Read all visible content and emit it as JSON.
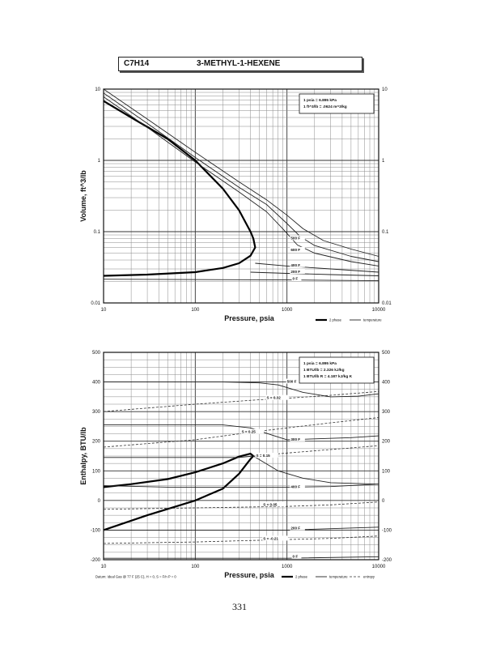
{
  "header": {
    "formula": "C7H14",
    "compound": "3-METHYL-1-HEXENE"
  },
  "page_number": "331",
  "chart_data": [
    {
      "type": "line",
      "x_scale": "log",
      "y_scale": "log",
      "xlim": [
        10,
        10000
      ],
      "ylim": [
        0.01,
        10
      ],
      "xlabel": "Pressure,  psia",
      "ylabel": "Volume, ft^3/lb",
      "x_ticks": [
        "10",
        "100",
        "1000",
        "10000"
      ],
      "y_ticks": [
        "0.01",
        "0.1",
        "1",
        "10"
      ],
      "conversion_notes": [
        "1 psia  =  6.895 kPa",
        "1 ft^3/lb  =  .0624 m^3/kg"
      ],
      "legend": [
        "2 phase",
        "temperature"
      ],
      "legend_placement": "bottom-right",
      "grid": true,
      "series": [
        {
          "name": "2 phase",
          "style": "heavy",
          "points": [
            [
              10,
              0.024
            ],
            [
              30,
              0.025
            ],
            [
              100,
              0.027
            ],
            [
              200,
              0.031
            ],
            [
              300,
              0.036
            ],
            [
              400,
              0.046
            ],
            [
              450,
              0.06
            ],
            [
              430,
              0.08
            ],
            [
              400,
              0.1
            ],
            [
              300,
              0.2
            ],
            [
              200,
              0.4
            ],
            [
              100,
              1.0
            ],
            [
              50,
              2.0
            ],
            [
              20,
              4.0
            ],
            [
              10,
              6.8
            ]
          ]
        },
        {
          "name": "temperature",
          "style": "thin",
          "points": [
            [
              10,
              7.8
            ],
            [
              30,
              2.9
            ],
            [
              100,
              0.95
            ],
            [
              300,
              0.36
            ],
            [
              600,
              0.19
            ],
            [
              900,
              0.11
            ],
            [
              1300,
              0.065
            ],
            [
              2000,
              0.05
            ],
            [
              5000,
              0.038
            ],
            [
              10000,
              0.033
            ]
          ]
        },
        {
          "name": "temperature",
          "style": "thin",
          "points": [
            [
              10,
              8.8
            ],
            [
              30,
              3.3
            ],
            [
              100,
              1.1
            ],
            [
              300,
              0.42
            ],
            [
              600,
              0.24
            ],
            [
              1000,
              0.13
            ],
            [
              1400,
              0.085
            ],
            [
              2000,
              0.064
            ],
            [
              5000,
              0.045
            ],
            [
              10000,
              0.038
            ]
          ]
        },
        {
          "name": "temperature",
          "style": "thin",
          "points": [
            [
              10,
              10
            ],
            [
              30,
              3.8
            ],
            [
              100,
              1.3
            ],
            [
              300,
              0.5
            ],
            [
              600,
              0.28
            ],
            [
              1000,
              0.17
            ],
            [
              1500,
              0.11
            ],
            [
              2500,
              0.075
            ],
            [
              5000,
              0.057
            ],
            [
              10000,
              0.045
            ]
          ]
        },
        {
          "name": "temperature",
          "style": "thin",
          "points": [
            [
              450,
              0.036
            ],
            [
              1000,
              0.033
            ],
            [
              3000,
              0.03
            ],
            [
              10000,
              0.027
            ]
          ]
        },
        {
          "name": "temperature",
          "style": "thin",
          "points": [
            [
              400,
              0.027
            ],
            [
              1000,
              0.026
            ],
            [
              3000,
              0.025
            ],
            [
              10000,
              0.024
            ]
          ]
        },
        {
          "name": "temperature",
          "style": "thin",
          "points": [
            [
              10,
              0.0215
            ],
            [
              1000,
              0.021
            ],
            [
              10000,
              0.0205
            ]
          ]
        }
      ],
      "annotations": [
        {
          "text": "500 F",
          "x": 1100,
          "y": 0.08
        },
        {
          "text": "600 F",
          "x": 1100,
          "y": 0.055
        },
        {
          "text": "400 F",
          "x": 1100,
          "y": 0.0335
        },
        {
          "text": "200 F",
          "x": 1100,
          "y": 0.027
        },
        {
          "text": "0 F",
          "x": 1150,
          "y": 0.0215
        }
      ]
    },
    {
      "type": "line",
      "x_scale": "log",
      "y_scale": "linear",
      "xlim": [
        10,
        10000
      ],
      "ylim": [
        -200,
        500
      ],
      "xlabel": "Pressure,  psia",
      "ylabel": "Enthalpy, BTU/lb",
      "x_ticks": [
        "10",
        "100",
        "1000",
        "10000"
      ],
      "y_ticks": [
        "-200",
        "-100",
        "0",
        "100",
        "200",
        "300",
        "400",
        "500"
      ],
      "conversion_notes": [
        "1 psia  =  6.895 kPa",
        "1 BTU/lb  =  2.326 kJ/kg",
        "1 BTU/lb R  =  4.187 kJ/kg K"
      ],
      "legend": [
        "2 phase",
        "temperature",
        "entropy"
      ],
      "legend_placement": "bottom-right",
      "footnote": "Datum: Ideal Gas @ 77 F (25 C),  H = 0,  S = F/n P = 0",
      "grid": true,
      "series": [
        {
          "name": "2 phase",
          "style": "heavy",
          "points": [
            [
              10,
              -100
            ],
            [
              30,
              -50
            ],
            [
              100,
              0
            ],
            [
              200,
              40
            ],
            [
              300,
              90
            ],
            [
              400,
              140
            ],
            [
              430,
              150
            ],
            [
              400,
              158
            ],
            [
              300,
              148
            ],
            [
              200,
              125
            ],
            [
              100,
              95
            ],
            [
              50,
              72
            ],
            [
              20,
              55
            ],
            [
              10,
              45
            ]
          ]
        },
        {
          "name": "temperature",
          "style": "thin",
          "points": [
            [
              10,
              400
            ],
            [
              200,
              400
            ],
            [
              500,
              397
            ],
            [
              800,
              390
            ],
            [
              1500,
              365
            ],
            [
              3000,
              350
            ],
            [
              6000,
              352
            ],
            [
              10000,
              360
            ]
          ]
        },
        {
          "name": "temperature",
          "style": "thin",
          "points": [
            [
              10,
              255
            ],
            [
              200,
              255
            ],
            [
              400,
              245
            ],
            [
              700,
              220
            ],
            [
              1000,
              205
            ],
            [
              2000,
              208
            ],
            [
              5000,
              212
            ],
            [
              10000,
              218
            ]
          ]
        },
        {
          "name": "temperature",
          "style": "thin",
          "points": [
            [
              10,
              145
            ],
            [
              300,
              145
            ],
            [
              430,
              150
            ]
          ]
        },
        {
          "name": "temperature",
          "style": "thin",
          "points": [
            [
              430,
              150
            ],
            [
              800,
              100
            ],
            [
              1500,
              75
            ],
            [
              3000,
              60
            ],
            [
              10000,
              55
            ]
          ]
        },
        {
          "name": "temperature",
          "style": "thin",
          "points": [
            [
              10,
              50
            ],
            [
              50,
              45
            ],
            [
              100,
              45
            ],
            [
              1000,
              45
            ],
            [
              3000,
              47
            ],
            [
              10000,
              55
            ]
          ]
        },
        {
          "name": "temperature",
          "style": "thin",
          "points": [
            [
              10,
              -100
            ],
            [
              1000,
              -100
            ],
            [
              10000,
              -90
            ]
          ]
        },
        {
          "name": "temperature",
          "style": "thin",
          "points": [
            [
              10,
              -195
            ],
            [
              1000,
              -195
            ],
            [
              10000,
              -190
            ]
          ]
        },
        {
          "name": "entropy",
          "style": "dashed",
          "points": [
            [
              10,
              300
            ],
            [
              100,
              325
            ],
            [
              500,
              340
            ],
            [
              1000,
              345
            ],
            [
              3000,
              355
            ],
            [
              10000,
              368
            ]
          ]
        },
        {
          "name": "entropy",
          "style": "dashed",
          "points": [
            [
              10,
              180
            ],
            [
              100,
              205
            ],
            [
              400,
              230
            ],
            [
              1000,
              245
            ],
            [
              3000,
              262
            ],
            [
              10000,
              280
            ]
          ]
        },
        {
          "name": "entropy",
          "style": "dashed",
          "points": [
            [
              430,
              150
            ],
            [
              1000,
              160
            ],
            [
              3000,
              172
            ],
            [
              10000,
              185
            ]
          ]
        },
        {
          "name": "entropy",
          "style": "dashed",
          "points": [
            [
              10,
              -30
            ],
            [
              100,
              -25
            ],
            [
              1000,
              -20
            ],
            [
              3000,
              -15
            ],
            [
              10000,
              -5
            ]
          ]
        },
        {
          "name": "entropy",
          "style": "dashed",
          "points": [
            [
              10,
              -145
            ],
            [
              100,
              -140
            ],
            [
              1000,
              -132
            ],
            [
              3000,
              -128
            ],
            [
              10000,
              -120
            ]
          ]
        }
      ],
      "annotations": [
        {
          "text": "500 F",
          "x": 1000,
          "y": 400
        },
        {
          "text": "S = 0.32",
          "x": 600,
          "y": 345
        },
        {
          "text": "S = 0.25",
          "x": 320,
          "y": 230
        },
        {
          "text": "300 F",
          "x": 1100,
          "y": 205
        },
        {
          "text": "S = 0.15",
          "x": 460,
          "y": 150
        },
        {
          "text": "400 F",
          "x": 1100,
          "y": 45
        },
        {
          "text": "S = 0.05",
          "x": 550,
          "y": -15
        },
        {
          "text": "200 F",
          "x": 1100,
          "y": -95
        },
        {
          "text": "S = -0.21",
          "x": 550,
          "y": -130
        },
        {
          "text": "0 F",
          "x": 1150,
          "y": -190
        }
      ]
    }
  ]
}
